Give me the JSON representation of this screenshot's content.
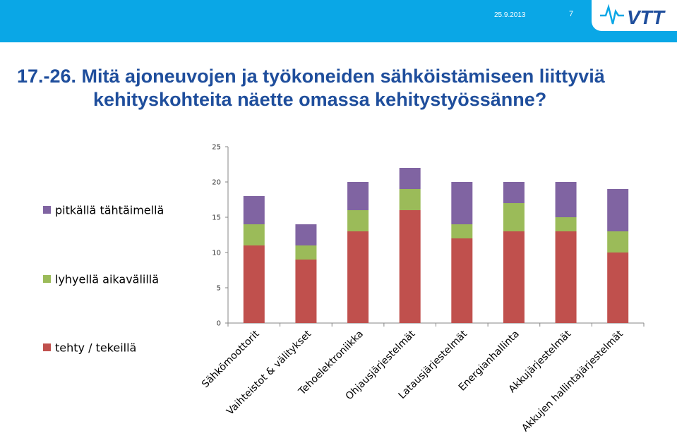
{
  "header": {
    "date": "25.9.2013",
    "page_number": "7",
    "logo_text": "VTT",
    "band_color": "#0aa7e6",
    "logo_icon": "vtt-logo"
  },
  "title": {
    "line1": "17.-26. Mitä ajoneuvojen ja työkoneiden sähköistämiseen liittyviä",
    "line2": "kehityskohteita näette omassa kehitystyössänne?"
  },
  "chart_data": {
    "type": "bar",
    "stacked": true,
    "categories": [
      "Sähkömoottorit",
      "Vaihteistot & välitykset",
      "Tehoelektroniikka",
      "Ohjausjärjestelmät",
      "Latausjärjestelmät",
      "Energianhallinta",
      "Akkujärjestelmät",
      "Akkujen hallintajärjestelmät"
    ],
    "series": [
      {
        "name": "tehty / tekeillä",
        "color": "#c0504d",
        "values": [
          11,
          9,
          13,
          16,
          12,
          13,
          13,
          10
        ]
      },
      {
        "name": "lyhyellä aikavälillä",
        "color": "#9bbb59",
        "values": [
          3,
          2,
          3,
          3,
          2,
          4,
          2,
          3
        ]
      },
      {
        "name": "pitkällä tähtäimellä",
        "color": "#8064a2",
        "values": [
          4,
          3,
          4,
          3,
          6,
          3,
          5,
          6
        ]
      }
    ],
    "ylim": [
      0,
      25
    ],
    "yticks": [
      0,
      5,
      10,
      15,
      20,
      25
    ],
    "grid": false,
    "legend_position": "left",
    "title": "",
    "xlabel": "",
    "ylabel": ""
  }
}
